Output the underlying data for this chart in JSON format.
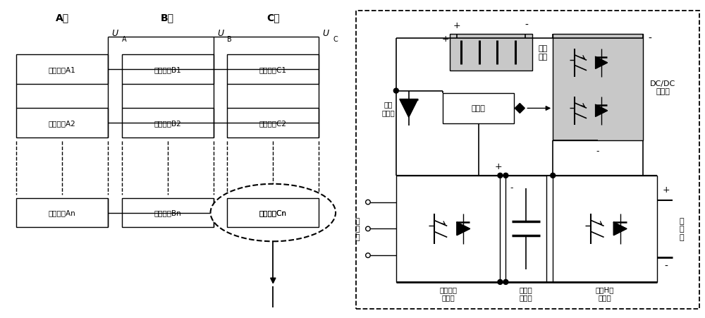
{
  "bg_color": "#ffffff",
  "lc": "#000000",
  "gray": "#c8c8c8",
  "phase_labels": [
    "A相",
    "B相",
    "C相"
  ],
  "units_A": [
    "级联单元A1",
    "级联单元A2",
    "级联单元An"
  ],
  "units_B": [
    "级联单元B1",
    "级联单元B2",
    "级联单元Bn"
  ],
  "units_C": [
    "级联单元C1",
    "级联单元C2",
    "级联单元Cn"
  ],
  "storage_label": "储能\n系统",
  "dcdc_label": "DC/DC\n变换器",
  "controller_label": "控制器",
  "diode_label": "功率\n二极管",
  "rect_label": "三相不控\n整流桥",
  "cap_label": "直流母\n线电容",
  "hbridge_label": "级联H桥\n变换器",
  "input_label": "输\n入\n側",
  "output_label": "输\n出\n側"
}
